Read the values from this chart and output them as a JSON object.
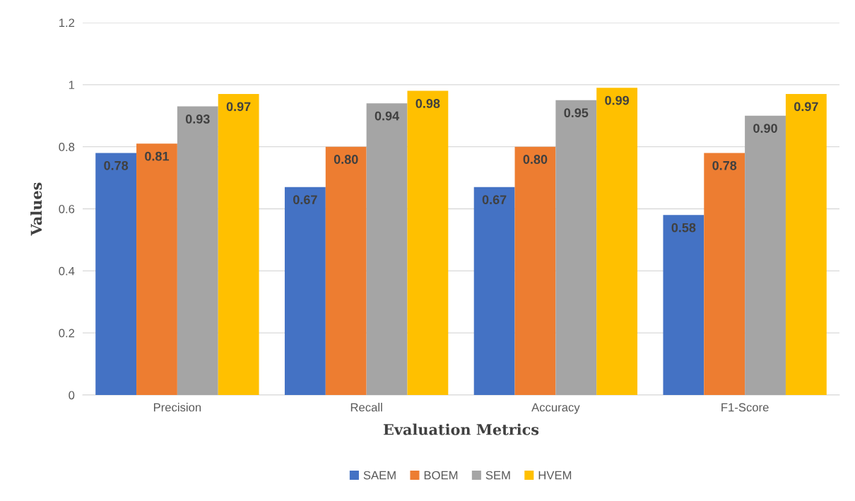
{
  "chart_data": {
    "type": "bar",
    "xlabel": "Evaluation Metrics",
    "ylabel": "Values",
    "categories": [
      "Precision",
      "Recall",
      "Accuracy",
      "F1-Score"
    ],
    "series": [
      {
        "name": "SAEM",
        "color": "#4472c4",
        "values": [
          0.78,
          0.67,
          0.67,
          0.58
        ],
        "value_labels": [
          "0.78",
          "0.67",
          "0.67",
          "0.58"
        ]
      },
      {
        "name": "BOEM",
        "color": "#ed7d31",
        "values": [
          0.81,
          0.8,
          0.8,
          0.78
        ],
        "value_labels": [
          "0.81",
          "0.80",
          "0.80",
          "0.78"
        ]
      },
      {
        "name": "SEM",
        "color": "#a5a5a5",
        "values": [
          0.93,
          0.94,
          0.95,
          0.9
        ],
        "value_labels": [
          "0.93",
          "0.94",
          "0.95",
          "0.90"
        ]
      },
      {
        "name": "HVEM",
        "color": "#ffc000",
        "values": [
          0.97,
          0.98,
          0.99,
          0.97
        ],
        "value_labels": [
          "0.97",
          "0.98",
          "0.99",
          "0.97"
        ]
      }
    ],
    "ylim": [
      0,
      1.2
    ],
    "yticks": [
      0,
      0.2,
      0.4,
      0.6,
      0.8,
      1,
      1.2
    ],
    "grid": "y",
    "legend": "bottom"
  }
}
